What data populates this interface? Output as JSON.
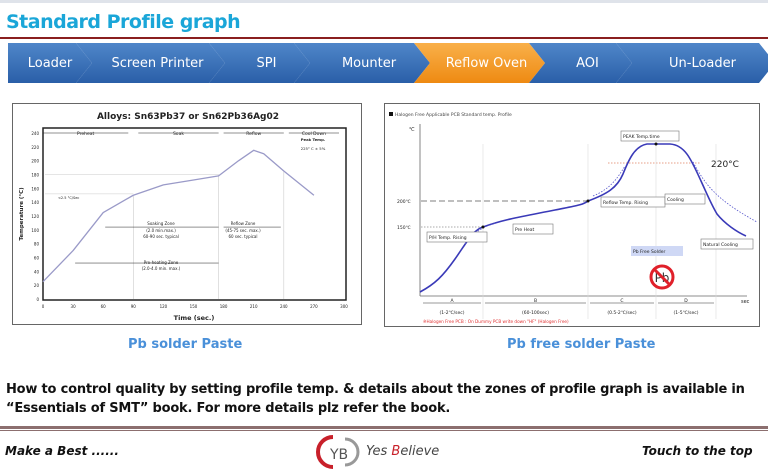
{
  "title": "Standard Profile graph",
  "flow": {
    "steps": [
      {
        "label": "Loader"
      },
      {
        "label": "Screen Printer"
      },
      {
        "label": "SPI"
      },
      {
        "label": "Mounter"
      },
      {
        "label": "Reflow Oven",
        "active": true
      },
      {
        "label": "AOI"
      },
      {
        "label": "Un-Loader"
      }
    ],
    "accent": "#2a5fa8",
    "active_color": "#ee8a12"
  },
  "chart_data": [
    {
      "type": "line",
      "title": "Alloys:  Sn63Pb37 or Sn62Pb36Ag02",
      "xlabel": "Time (sec.)",
      "ylabel": "Temperature (°C)",
      "xlim": [
        0,
        300
      ],
      "ylim": [
        0,
        240
      ],
      "xticks": [
        "0",
        "30",
        "60",
        "90",
        "120",
        "150",
        "180",
        "210",
        "240",
        "270",
        "300"
      ],
      "yticks": [
        "0",
        "20",
        "40",
        "60",
        "80",
        "100",
        "120",
        "140",
        "160",
        "180",
        "200",
        "220",
        "240"
      ],
      "x": [
        0,
        30,
        60,
        90,
        120,
        150,
        175,
        195,
        210,
        220,
        240,
        270
      ],
      "y": [
        25,
        70,
        125,
        150,
        165,
        172,
        178,
        200,
        215,
        210,
        185,
        150
      ],
      "line_color": "#9a9ac8",
      "phases": [
        "Preheat",
        "Soak",
        "Reflow",
        "Cool Down"
      ],
      "annotations": {
        "peak": "Peak Temp.",
        "peak_value": "225° C ± 5%",
        "rate": "<2.5 °C/Sec",
        "soak1": "Soaking Zone",
        "soak2": "(2.0 min.max.)",
        "soak3": "60-90 sec. typical",
        "reflow1": "Reflow Zone",
        "reflow2": "(45-75 sec. max.)",
        "reflow3": "60 sec. typical",
        "pre1": "Pre-heating Zone",
        "pre2": "(2.0-4.0 min. max.)"
      }
    },
    {
      "type": "line",
      "title": "Halogen Free Applicable PCB Standard temp. Profile",
      "yunit": "℃",
      "xunit": "sec",
      "levels": [
        "150℃",
        "200℃",
        "220°C"
      ],
      "labels": {
        "peak": "PEAK Temp.time",
        "reflow": "Reflow Temp. Rising",
        "cooling": "Cooling",
        "preheat": "Pre Heat",
        "ph": "P/H Temp. Rising",
        "natural": "Natural Cooling",
        "pbfree": "Pb Free Solder",
        "pb": "Pb"
      },
      "zones": [
        {
          "name": "A",
          "rate": "(1-2℃/sec)"
        },
        {
          "name": "B",
          "rate": "(60-100sec)"
        },
        {
          "name": "C",
          "rate": "(0.5-2℃/sec)"
        },
        {
          "name": "D",
          "rate": "(1-5℃/sec)"
        }
      ],
      "note": "※Halogen Free  PCB : On Dummy PCB write down   \"HF\" (Halogen Free)",
      "line_color": "#3a3ab8"
    }
  ],
  "captions": {
    "left": "Pb solder Paste",
    "right": "Pb free solder Paste"
  },
  "paragraph": "How to control quality by setting profile temp. & details about the zones of profile graph is available in “Essentials of SMT” book. For more details plz refer the book.",
  "footer": {
    "left": "Make a Best ......",
    "brand_a": "Yes ",
    "brand_b": "B",
    "brand_c": "elieve",
    "right": "Touch to the top"
  }
}
